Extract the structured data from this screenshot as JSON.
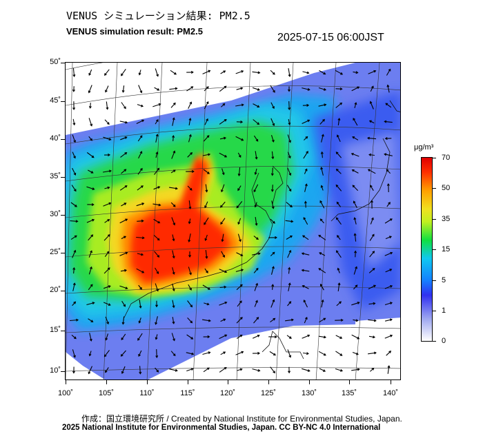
{
  "title_jp": "VENUS シミュレーション結果: PM2.5",
  "title_en": "VENUS simulation result: PM2.5",
  "datetime": "2025-07-15 06:00JST",
  "y_axis_labels": [
    "50˚",
    "45˚",
    "40˚",
    "35˚",
    "30˚",
    "25˚",
    "20˚",
    "15˚",
    "10˚"
  ],
  "x_axis_labels": [
    "100˚",
    "105˚",
    "110˚",
    "115˚",
    "120˚",
    "125˚",
    "130˚",
    "135˚",
    "140˚"
  ],
  "colorbar": {
    "unit": "μg/m³",
    "labels": [
      "70",
      "50",
      "35",
      "15",
      "5",
      "1",
      "0"
    ],
    "colors": [
      "#e00000",
      "#ff3000",
      "#ffa000",
      "#f0e020",
      "#c0f020",
      "#10e040",
      "#10c8f0",
      "#1580ff",
      "#3030f0",
      "#9fa8f0",
      "#ffffff"
    ]
  },
  "credit_jp": "作成：国立環境研究所 / Created by National Institute for Environmental Studies, Japan.",
  "credit_en": "2025 National Institute for Environmental Studies, Japan. CC BY-NC 4.0 International"
}
